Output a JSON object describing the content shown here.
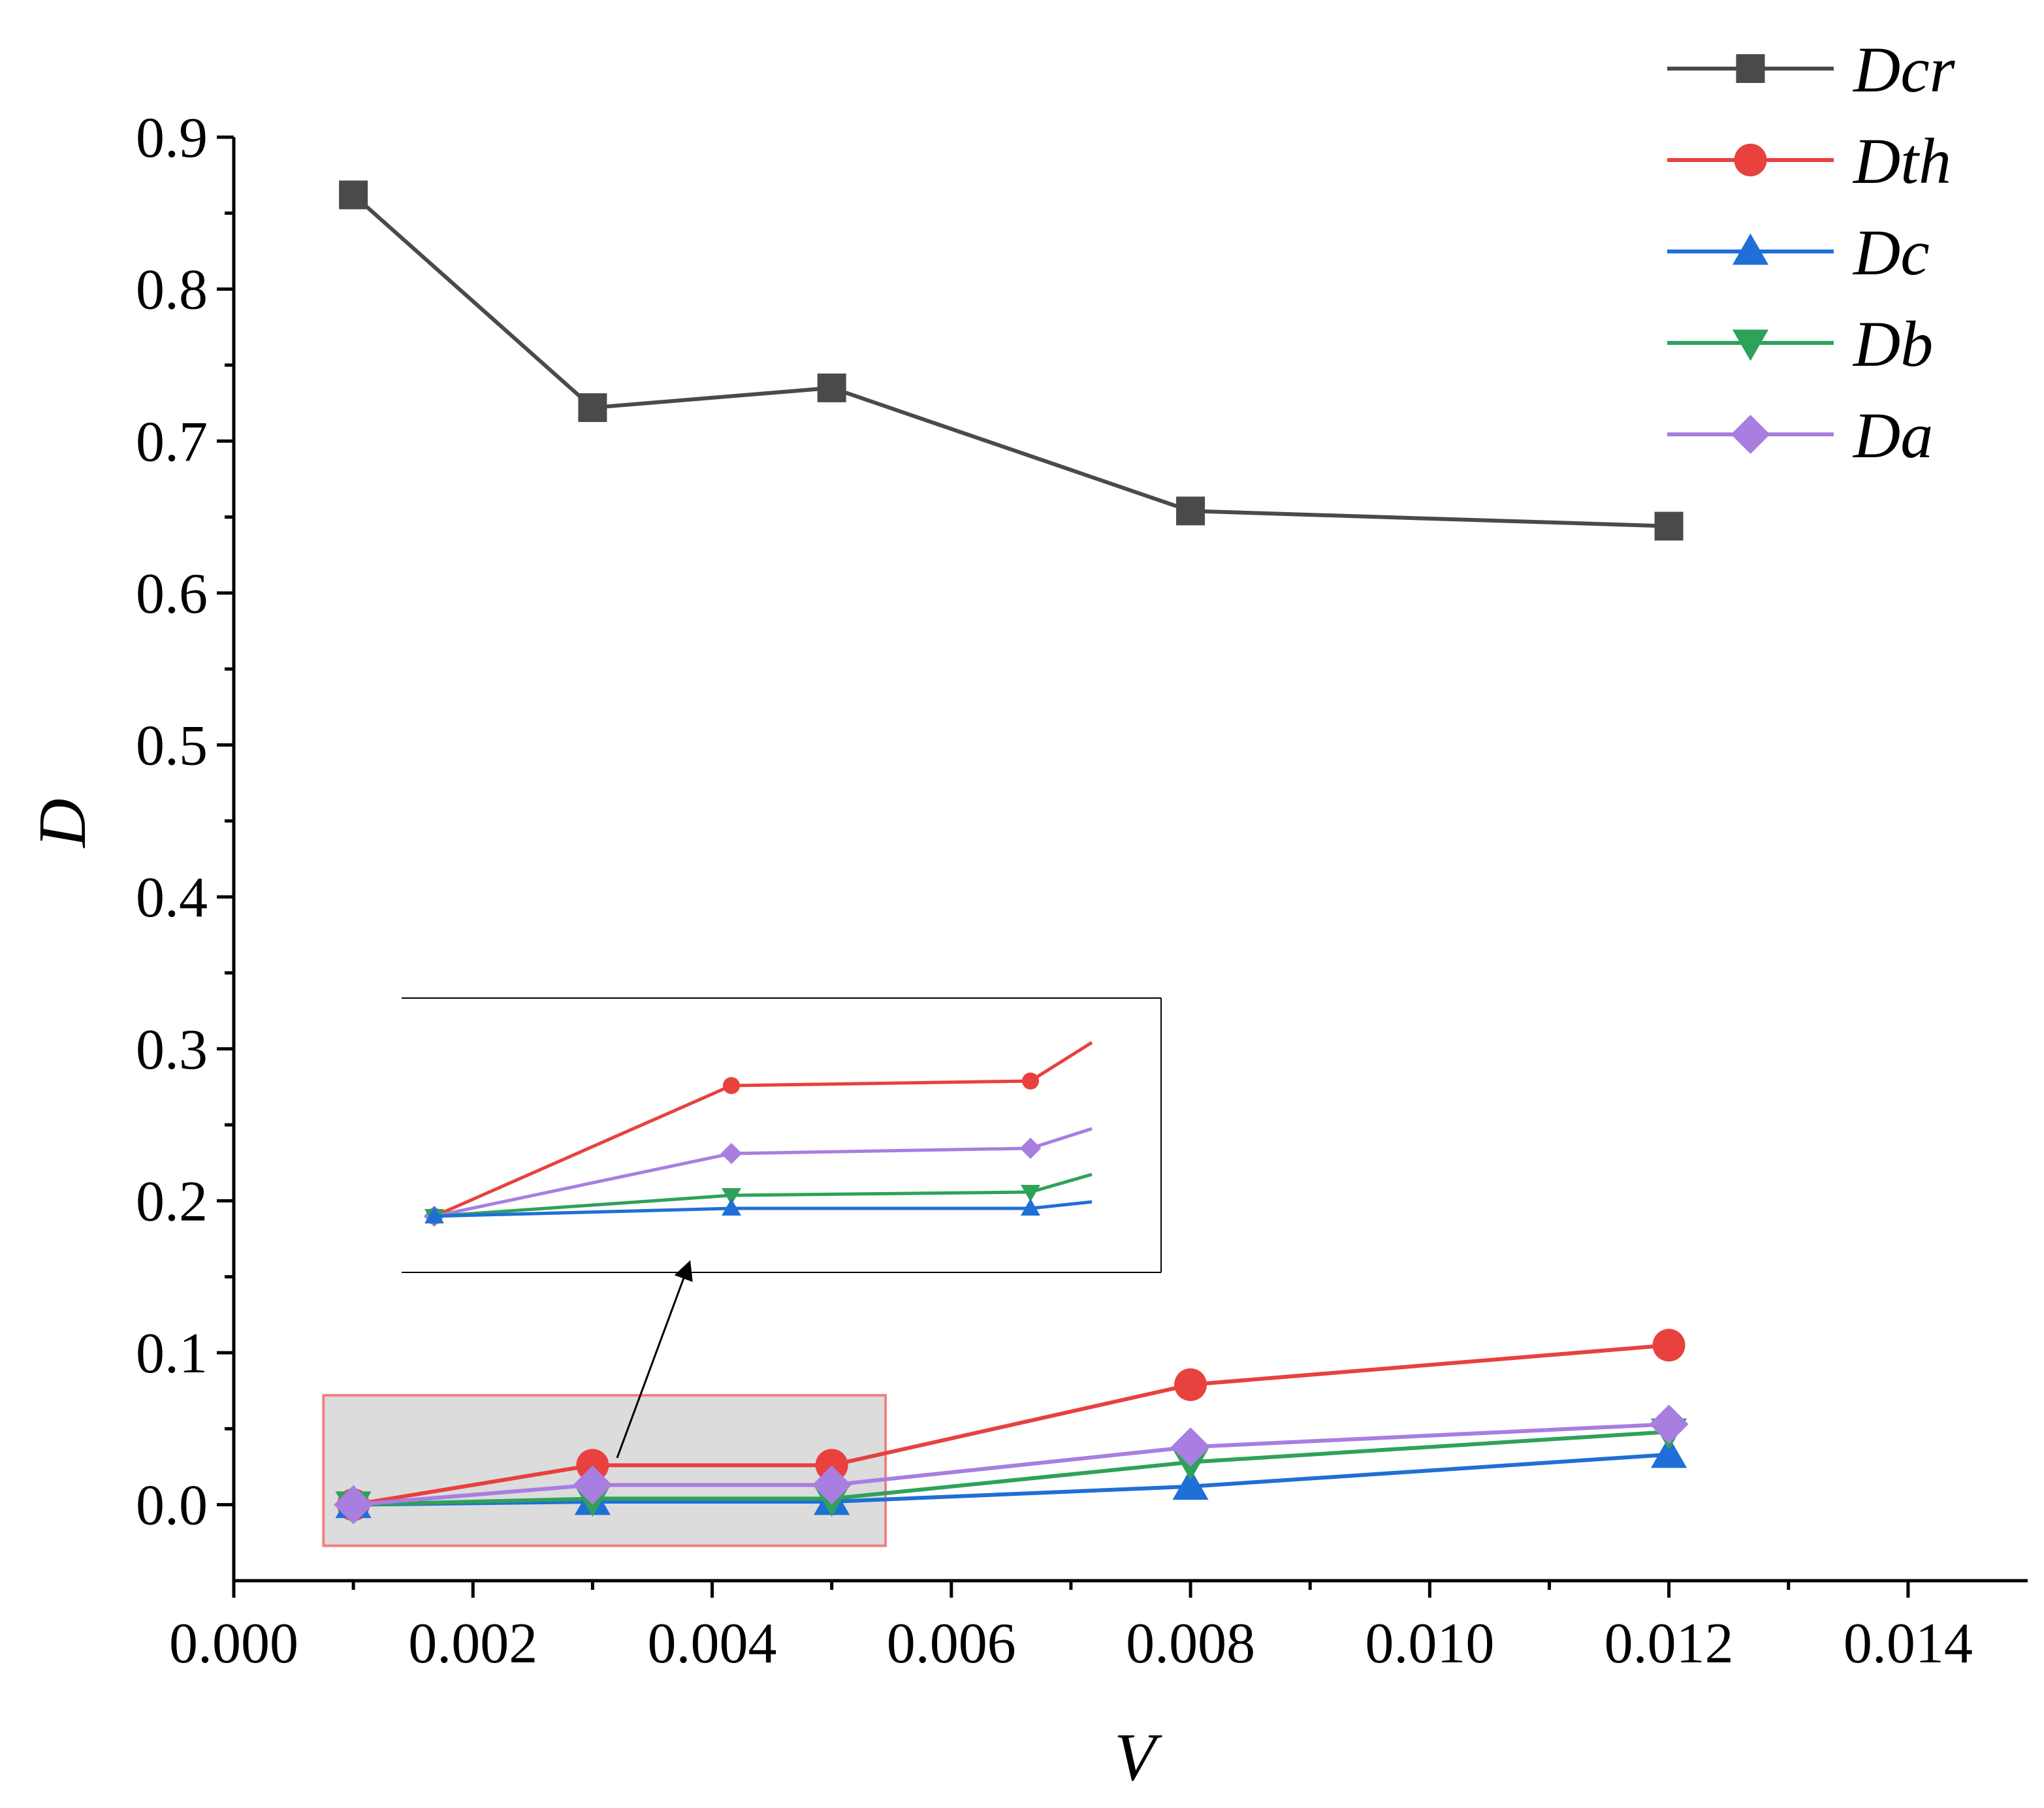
{
  "chart_data": {
    "type": "line",
    "title": "",
    "xlabel": "V",
    "ylabel": "D",
    "xlim": [
      0.0,
      0.015
    ],
    "ylim": [
      -0.05,
      0.9
    ],
    "xticks": [
      0.0,
      0.002,
      0.004,
      0.006,
      0.008,
      0.01,
      0.012,
      0.014
    ],
    "xtick_labels": [
      "0.000",
      "0.002",
      "0.004",
      "0.006",
      "0.008",
      "0.010",
      "0.012",
      "0.014"
    ],
    "yticks": [
      0.0,
      0.1,
      0.2,
      0.3,
      0.4,
      0.5,
      0.6,
      0.7,
      0.8,
      0.9
    ],
    "ytick_labels": [
      "0.0",
      "0.1",
      "0.2",
      "0.3",
      "0.4",
      "0.5",
      "0.6",
      "0.7",
      "0.8",
      "0.9"
    ],
    "grid": false,
    "legend_position": "top-right",
    "x": [
      0.001,
      0.003,
      0.005,
      0.008,
      0.012
    ],
    "series": [
      {
        "name": "Dcr",
        "color": "#4a4a4a",
        "marker": "square",
        "values": [
          0.862,
          0.722,
          0.735,
          0.654,
          0.644
        ]
      },
      {
        "name": "Dth",
        "color": "#e8413e",
        "marker": "circle",
        "values": [
          0.0,
          0.026,
          0.026,
          0.079,
          0.105
        ]
      },
      {
        "name": "Dc",
        "color": "#1f6fd6",
        "marker": "triangle-up",
        "values": [
          0.0,
          0.002,
          0.002,
          0.012,
          0.033
        ]
      },
      {
        "name": "Db",
        "color": "#2ea25a",
        "marker": "triangle-down",
        "values": [
          0.0,
          0.004,
          0.004,
          0.028,
          0.048
        ]
      },
      {
        "name": "Da",
        "color": "#a87ee0",
        "marker": "diamond",
        "values": [
          0.0,
          0.013,
          0.013,
          0.038,
          0.053
        ]
      }
    ],
    "highlight_region": {
      "x_range": [
        0.00075,
        0.00545
      ],
      "y_range": [
        -0.027,
        0.072
      ],
      "fill": "#dcdcdc",
      "border": "#f08080"
    },
    "inset": {
      "description_series_order": [
        "Dth",
        "Da",
        "Db",
        "Dc"
      ]
    }
  }
}
